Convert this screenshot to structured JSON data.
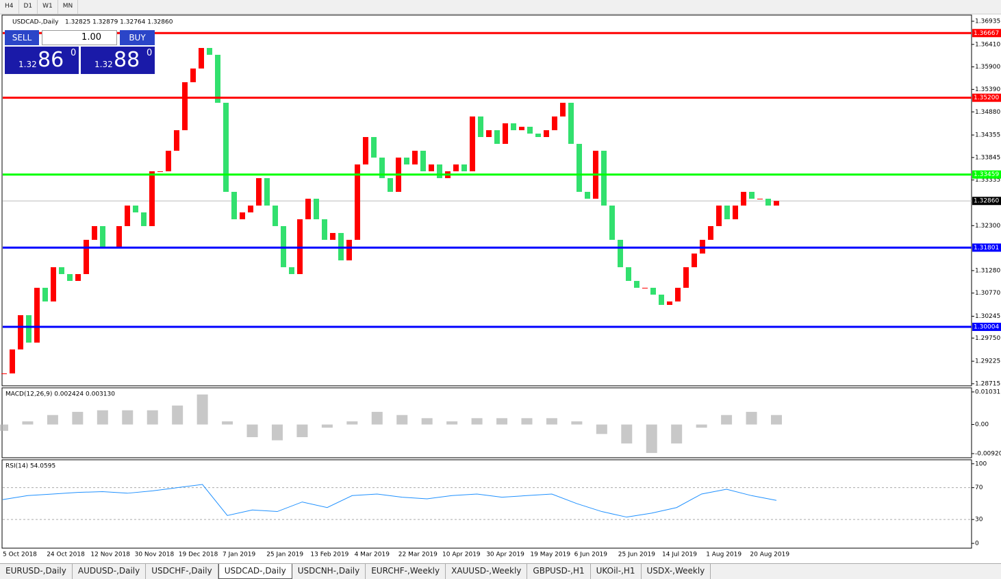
{
  "toolbar": [
    "H4",
    "D1",
    "W1",
    "MN"
  ],
  "trade_panel": {
    "sell": "SELL",
    "lot": "1.00",
    "buy": "BUY",
    "sell_prefix": "1.32",
    "sell_big": "86",
    "sell_sup": "0",
    "buy_prefix": "1.32",
    "buy_big": "88",
    "buy_sup": "0"
  },
  "tabs": [
    "EURUSD-,Daily",
    "AUDUSD-,Daily",
    "USDCHF-,Daily",
    "USDCAD-,Daily",
    "USDCNH-,Daily",
    "EURCHF-,Weekly",
    "XAUUSD-,Weekly",
    "GBPUSD-,H1",
    "UKOil-,H1",
    "USDX-,Weekly"
  ],
  "active_tab": "USDCAD-,Daily",
  "chart_data": {
    "type": "candlestick",
    "title": "USDCAD-,Daily",
    "ohlc": "1.32825 1.32879 1.32764 1.32860",
    "up_color": "#ff0000",
    "down_color": "#32e06e",
    "x_labels": [
      "5 Oct 2018",
      "24 Oct 2018",
      "12 Nov 2018",
      "30 Nov 2018",
      "19 Dec 2018",
      "7 Jan 2019",
      "25 Jan 2019",
      "13 Feb 2019",
      "4 Mar 2019",
      "22 Mar 2019",
      "10 Apr 2019",
      "30 Apr 2019",
      "19 May 2019",
      "6 Jun 2019",
      "25 Jun 2019",
      "14 Jul 2019",
      "1 Aug 2019",
      "20 Aug 2019"
    ],
    "values": [
      1.28948,
      1.29492,
      1.30269,
      1.29647,
      1.3089,
      1.3058,
      1.31357,
      1.31201,
      1.31046,
      1.31201,
      1.31978,
      1.32289,
      1.31823,
      1.31823,
      1.32289,
      1.32755,
      1.326,
      1.32289,
      1.33532,
      1.33532,
      1.33998,
      1.34464,
      1.35552,
      1.35863,
      1.36329,
      1.36174,
      1.35086,
      1.33066,
      1.32444,
      1.326,
      1.32755,
      1.33377,
      1.32755,
      1.32289,
      1.31357,
      1.31201,
      1.32444,
      1.3291,
      1.32444,
      1.31978,
      1.32133,
      1.31512,
      1.31978,
      1.33687,
      1.34309,
      1.33843,
      1.33377,
      1.33066,
      1.33843,
      1.33687,
      1.33998,
      1.33532,
      1.33687,
      1.33377,
      1.33532,
      1.33687,
      1.33532,
      1.34775,
      1.34309,
      1.34464,
      1.34154,
      1.3462,
      1.34464,
      1.34542,
      1.34387,
      1.34309,
      1.34464,
      1.34775,
      1.35086,
      1.34154,
      1.33066,
      1.3291,
      1.33998,
      1.32755,
      1.31978,
      1.31357,
      1.31046,
      1.3089,
      1.3089,
      1.30735,
      1.30502,
      1.3058,
      1.3089,
      1.31357,
      1.31667,
      1.31978,
      1.32289,
      1.32755,
      1.32444,
      1.32755,
      1.33066,
      1.3291,
      1.3291,
      1.32755,
      1.3286
    ],
    "ylim": [
      1.28668,
      1.37075
    ],
    "yticks": [
      {
        "value": 1.36935,
        "label": "1.36935"
      },
      {
        "value": 1.3641,
        "label": "1.36410"
      },
      {
        "value": 1.359,
        "label": "1.35900"
      },
      {
        "value": 1.3539,
        "label": "1.35390"
      },
      {
        "value": 1.3488,
        "label": "1.34880"
      },
      {
        "value": 1.34355,
        "label": "1.34355"
      },
      {
        "value": 1.33845,
        "label": "1.33845"
      },
      {
        "value": 1.33335,
        "label": "1.33335"
      },
      {
        "value": 1.323,
        "label": "1.32300"
      },
      {
        "value": 1.3128,
        "label": "1.31280"
      },
      {
        "value": 1.3077,
        "label": "1.30770"
      },
      {
        "value": 1.30245,
        "label": "1.30245"
      },
      {
        "value": 1.2975,
        "label": "1.29750"
      },
      {
        "value": 1.29225,
        "label": "1.29225"
      },
      {
        "value": 1.28715,
        "label": "1.28715"
      }
    ],
    "levels": [
      {
        "value": 1.36667,
        "label": "1.36667",
        "color": "#ff0000"
      },
      {
        "value": 1.352,
        "label": "1.35200",
        "color": "#ff0000"
      },
      {
        "value": 1.33459,
        "label": "1.33459",
        "color": "#00ff00"
      },
      {
        "value": 1.31801,
        "label": "1.31801",
        "color": "#0000ff"
      },
      {
        "value": 1.30004,
        "label": "1.30004",
        "color": "#0000ff"
      }
    ],
    "current": {
      "value": 1.3286,
      "label": "1.32860"
    },
    "macd": {
      "label": "MACD(12,26,9) 0.002424 0.003130",
      "color": "#b0b0b0",
      "ylim": [
        -0.0105,
        0.0116
      ],
      "yticks": [
        0.010311,
        {
          "value": 0,
          "label": "0.00"
        },
        -0.009203
      ],
      "values": [
        -0.002,
        0.001,
        0.003,
        0.004,
        0.0045,
        0.0045,
        0.0045,
        0.006,
        0.0095,
        0.001,
        -0.004,
        -0.005,
        -0.004,
        -0.001,
        0.001,
        0.004,
        0.003,
        0.002,
        0.001,
        0.002,
        0.002,
        0.002,
        0.002,
        0.001,
        -0.003,
        -0.006,
        -0.009,
        -0.006,
        -0.001,
        0.003,
        0.004,
        0.003
      ]
    },
    "rsi": {
      "label": "RSI(14) 54.0595",
      "color": "#1e90ff",
      "ylim": [
        -6,
        105
      ],
      "yticks": [
        100,
        70,
        30,
        0
      ],
      "values": [
        55,
        60,
        62,
        64,
        65,
        63,
        66,
        70,
        74,
        35,
        42,
        40,
        52,
        45,
        60,
        62,
        58,
        56,
        60,
        62,
        58,
        60,
        62,
        50,
        40,
        33,
        38,
        45,
        62,
        68,
        60,
        54
      ]
    }
  }
}
